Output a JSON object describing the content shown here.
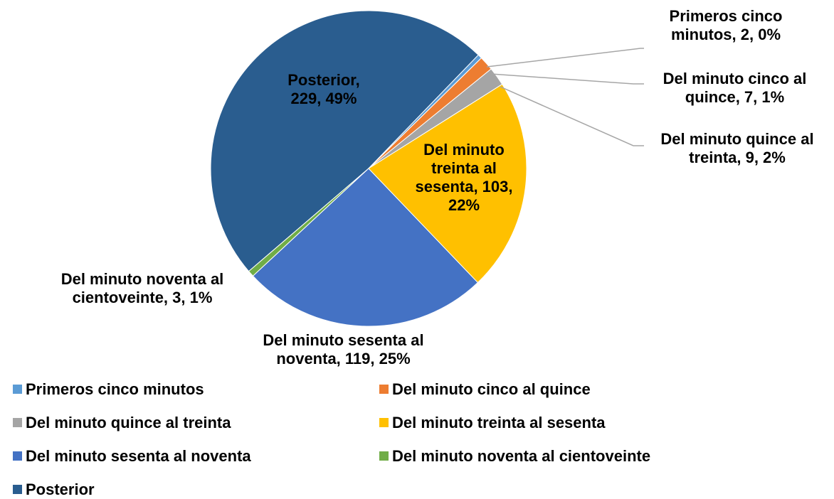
{
  "chart_data": {
    "type": "pie",
    "categories": [
      "Primeros cinco minutos",
      "Del minuto cinco al quince",
      "Del minuto quince al treinta",
      "Del minuto treinta al sesenta",
      "Del minuto sesenta al noventa",
      "Del minuto noventa al cientoveinte",
      "Posterior"
    ],
    "values": [
      2,
      7,
      9,
      103,
      119,
      3,
      229
    ],
    "value_labels": [
      "Primeros cinco minutos, 2, 0%",
      "Del minuto cinco al quince, 7, 1%",
      "Del minuto quince al treinta, 9, 2%",
      "Del minuto treinta al sesenta, 103, 22%",
      "Del minuto sesenta al noventa, 119, 25%",
      "Del minuto noventa al cientoveinte, 3, 1%",
      "Posterior, 229, 49%"
    ],
    "colors": [
      "#5b9bd5",
      "#ed7d31",
      "#a5a5a5",
      "#ffc000",
      "#4472c4",
      "#70ad47",
      "#2a5d8f"
    ],
    "legend": "bottom"
  }
}
